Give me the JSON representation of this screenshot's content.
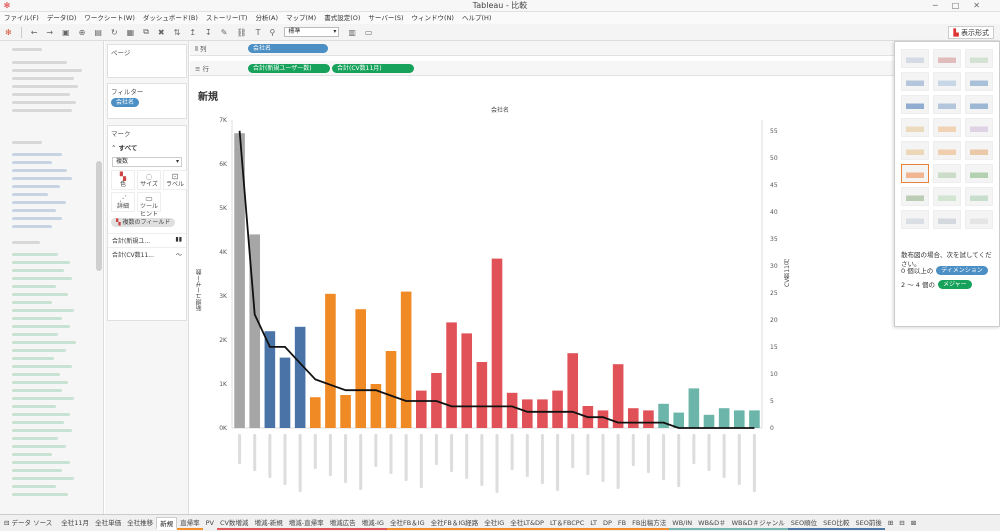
{
  "window": {
    "title": "Tableau - 比較"
  },
  "menu": [
    "ファイル(F)",
    "データ(D)",
    "ワークシート(W)",
    "ダッシュボード(B)",
    "ストーリー(T)",
    "分析(A)",
    "マップ(M)",
    "書式設定(O)",
    "サーバー(S)",
    "ウィンドウ(N)",
    "ヘルプ(H)"
  ],
  "toolbar": {
    "fit_select": "標準",
    "show_me": "表示形式"
  },
  "pages": {
    "label": "ページ"
  },
  "filters": {
    "label": "フィルター",
    "pill": "会社名"
  },
  "marks": {
    "label": "マーク",
    "all": "すべて",
    "type": "複数",
    "color": "色",
    "size": "サイズ",
    "label_btn": "ラベル",
    "detail": "詳細",
    "tooltip": "ツールヒント",
    "multi_field": "複数のフィールド",
    "measure1": "合計(新規ユ...",
    "measure2": "合計(CV数11..."
  },
  "shelves": {
    "columns_label": "列",
    "rows_label": "行",
    "columns_pill": "会社名",
    "rows_pill1": "合計(新規ユーザー数)",
    "rows_pill2": "合計(CV数11月)"
  },
  "sheet": {
    "title": "新規",
    "column_header": "会社名"
  },
  "chart_data": {
    "type": "bar",
    "xlabel": "会社名",
    "ylabel": "新規ユーザー数",
    "y2label": "CV数11月",
    "ylim": [
      0,
      7000
    ],
    "y2lim": [
      0,
      57
    ],
    "yticks": [
      "0K",
      "1K",
      "2K",
      "3K",
      "4K",
      "5K",
      "6K",
      "7K"
    ],
    "y2ticks": [
      "0",
      "5",
      "10",
      "15",
      "20",
      "25",
      "30",
      "35",
      "40",
      "45",
      "50",
      "55"
    ],
    "bar_values": [
      6700,
      4400,
      2200,
      1600,
      2300,
      700,
      3050,
      750,
      2700,
      1000,
      1750,
      3100,
      850,
      1250,
      2400,
      2150,
      1500,
      3850,
      800,
      650,
      650,
      850,
      1700,
      500,
      400,
      1450,
      450,
      400,
      550,
      350,
      900,
      300,
      450,
      400,
      400
    ],
    "bar_colors": [
      "#a6a6a6",
      "#a6a6a6",
      "#4a74a8",
      "#4a74a8",
      "#4a74a8",
      "#f08a24",
      "#f08a24",
      "#f08a24",
      "#f08a24",
      "#f08a24",
      "#f08a24",
      "#f08a24",
      "#e05258",
      "#e05258",
      "#e05258",
      "#e05258",
      "#e05258",
      "#e05258",
      "#e05258",
      "#e05258",
      "#e05258",
      "#e05258",
      "#e05258",
      "#e05258",
      "#e05258",
      "#e05258",
      "#e05258",
      "#e05258",
      "#6bb5aa",
      "#6bb5aa",
      "#6bb5aa",
      "#6bb5aa",
      "#6bb5aa",
      "#6bb5aa",
      "#6bb5aa"
    ],
    "line_values": [
      55,
      21,
      15,
      15,
      12,
      9,
      8,
      7,
      7,
      7,
      6,
      5,
      5,
      5,
      4,
      4,
      4,
      4,
      4,
      3,
      3,
      3,
      3,
      2,
      2,
      1,
      1,
      1,
      1,
      0,
      0,
      0,
      0,
      0,
      0
    ],
    "line_color": "#111111",
    "grid": false
  },
  "show_me": {
    "hint": "散布図の場合、次を試してください。",
    "req1_prefix": "0 個以上の",
    "req1_pill": "ディメンション",
    "req2_prefix": "2 ～ 4 個の",
    "req2_pill": "メジャー"
  },
  "tabs": {
    "datasource": "データ ソース",
    "sheets": [
      "全社11月",
      "全社単価",
      "全社推移",
      "新規",
      "直帰率",
      "PV",
      "CV数増減",
      "増減-新規",
      "増減-直帰率",
      "増減広告",
      "増減-IG",
      "全社FB＆IG",
      "全社FB＆IG経路",
      "全社IG",
      "全社LT&DP",
      "LT＆FBCPC",
      "LT",
      "DP",
      "FB",
      "FB出稿方法",
      "WB/IN",
      "WB&D＃",
      "WB&D＃ジャンル",
      "SEO順位",
      "SEO比較",
      "SEO前後"
    ],
    "active": "新規"
  }
}
